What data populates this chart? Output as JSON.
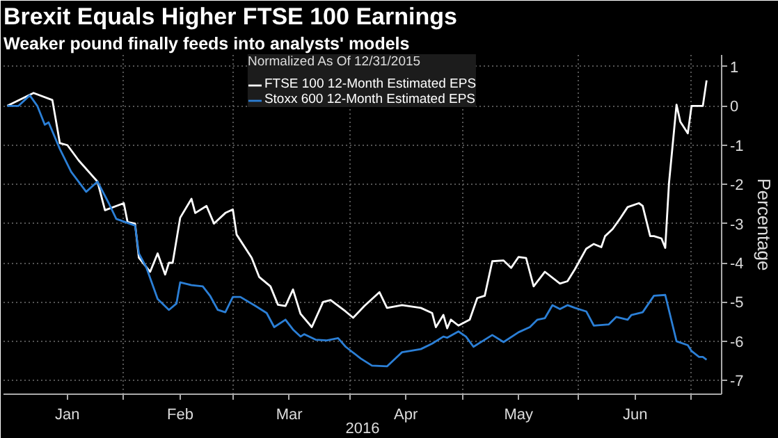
{
  "chart_data": {
    "type": "line",
    "title": "Brexit Equals Higher FTSE 100 Earnings",
    "subtitle": "Weaker pound finally feeds into analysts' models",
    "ylabel": "Percentage",
    "legend_title": "Normalized As Of 12/31/2015",
    "annotations": [
      "2016"
    ],
    "xlim": [
      "2015-12-31",
      "2016-07-09"
    ],
    "xticks": [
      {
        "value": "2016-01-17",
        "label": "Jan"
      },
      {
        "value": "2016-02-01",
        "label": null
      },
      {
        "value": "2016-02-16",
        "label": "Feb"
      },
      {
        "value": "2016-03-01",
        "label": null
      },
      {
        "value": "2016-03-16",
        "label": "Mar"
      },
      {
        "value": "2016-04-01",
        "label": null
      },
      {
        "value": "2016-04-16",
        "label": "Apr"
      },
      {
        "value": "2016-05-01",
        "label": null
      },
      {
        "value": "2016-05-16",
        "label": "May"
      },
      {
        "value": "2016-06-01",
        "label": null
      },
      {
        "value": "2016-06-16",
        "label": "Jun"
      },
      {
        "value": "2016-07-01",
        "label": null
      }
    ],
    "ylim": [
      -7.35,
      1.3
    ],
    "yticks": [
      -7,
      -6,
      -5,
      -4,
      -3,
      -2,
      -1,
      0,
      1
    ],
    "grid": true,
    "legend": "top",
    "series": [
      {
        "name": "FTSE 100 12-Month Estimated EPS",
        "color": "#ffffff",
        "x": [
          "2016-01-01",
          "2016-01-08",
          "2016-01-13",
          "2016-01-15",
          "2016-01-17",
          "2016-01-20",
          "2016-01-25",
          "2016-01-27",
          "2016-02-01",
          "2016-02-02",
          "2016-02-04",
          "2016-02-05",
          "2016-02-08",
          "2016-02-10",
          "2016-02-12",
          "2016-02-13",
          "2016-02-14",
          "2016-02-16",
          "2016-02-19",
          "2016-02-20",
          "2016-02-23",
          "2016-02-25",
          "2016-02-28",
          "2016-03-01",
          "2016-03-02",
          "2016-03-06",
          "2016-03-08",
          "2016-03-11",
          "2016-03-13",
          "2016-03-15",
          "2016-03-17",
          "2016-03-19",
          "2016-03-22",
          "2016-03-25",
          "2016-03-27",
          "2016-03-31",
          "2016-04-02",
          "2016-04-05",
          "2016-04-09",
          "2016-04-11",
          "2016-04-15",
          "2016-04-20",
          "2016-04-23",
          "2016-04-24",
          "2016-04-26",
          "2016-04-27",
          "2016-04-28",
          "2016-04-30",
          "2016-05-03",
          "2016-05-05",
          "2016-05-07",
          "2016-05-09",
          "2016-05-12",
          "2016-05-14",
          "2016-05-16",
          "2016-05-18",
          "2016-05-20",
          "2016-05-23",
          "2016-05-27",
          "2016-05-29",
          "2016-05-31",
          "2016-06-03",
          "2016-06-05",
          "2016-06-07",
          "2016-06-08",
          "2016-06-10",
          "2016-06-12",
          "2016-06-14",
          "2016-06-17",
          "2016-06-18",
          "2016-06-20",
          "2016-06-21",
          "2016-06-23",
          "2016-06-24",
          "2016-06-25",
          "2016-06-27",
          "2016-06-28",
          "2016-06-30",
          "2016-07-01",
          "2016-07-04",
          "2016-07-05"
        ],
        "values": [
          0,
          0.33,
          0.15,
          -0.95,
          -1.0,
          -1.39,
          -1.93,
          -2.66,
          -2.48,
          -2.96,
          -3.0,
          -3.87,
          -4.23,
          -3.76,
          -4.3,
          -4.0,
          -4.0,
          -2.85,
          -2.37,
          -2.73,
          -2.55,
          -3.0,
          -2.73,
          -2.64,
          -3.28,
          -3.87,
          -4.36,
          -4.6,
          -5.07,
          -5.1,
          -4.68,
          -5.3,
          -5.64,
          -5.0,
          -4.95,
          -5.24,
          -5.4,
          -5.1,
          -4.75,
          -5.15,
          -5.08,
          -5.15,
          -5.28,
          -5.64,
          -5.33,
          -5.67,
          -5.45,
          -5.6,
          -5.45,
          -4.9,
          -4.84,
          -3.96,
          -3.94,
          -4.13,
          -3.85,
          -3.88,
          -4.6,
          -4.23,
          -4.53,
          -4.47,
          -4.16,
          -3.64,
          -3.52,
          -3.6,
          -3.32,
          -3.14,
          -2.87,
          -2.58,
          -2.48,
          -2.55,
          -3.32,
          -3.32,
          -3.38,
          -3.62,
          -1.97,
          0.03,
          -0.4,
          -0.7,
          0,
          0,
          0.65
        ]
      },
      {
        "name": "Stoxx 600 12-Month Estimated EPS",
        "color": "#2b7fd6",
        "x": [
          "2016-01-01",
          "2016-01-04",
          "2016-01-07",
          "2016-01-09",
          "2016-01-11",
          "2016-01-12",
          "2016-01-15",
          "2016-01-18",
          "2016-01-22",
          "2016-01-25",
          "2016-01-28",
          "2016-01-30",
          "2016-02-04",
          "2016-02-05",
          "2016-02-07",
          "2016-02-10",
          "2016-02-13",
          "2016-02-15",
          "2016-02-16",
          "2016-02-19",
          "2016-02-22",
          "2016-02-24",
          "2016-02-26",
          "2016-02-28",
          "2016-03-01",
          "2016-03-03",
          "2016-03-07",
          "2016-03-10",
          "2016-03-12",
          "2016-03-15",
          "2016-03-17",
          "2016-03-19",
          "2016-03-20",
          "2016-03-23",
          "2016-03-26",
          "2016-03-29",
          "2016-03-31",
          "2016-04-04",
          "2016-04-07",
          "2016-04-11",
          "2016-04-15",
          "2016-04-17",
          "2016-04-20",
          "2016-04-23",
          "2016-04-26",
          "2016-04-27",
          "2016-04-30",
          "2016-05-02",
          "2016-05-04",
          "2016-05-07",
          "2016-05-09",
          "2016-05-12",
          "2016-05-16",
          "2016-05-19",
          "2016-05-21",
          "2016-05-23",
          "2016-05-25",
          "2016-05-27",
          "2016-05-29",
          "2016-05-31",
          "2016-06-03",
          "2016-06-05",
          "2016-06-09",
          "2016-06-11",
          "2016-06-14",
          "2016-06-15",
          "2016-06-18",
          "2016-06-21",
          "2016-06-24",
          "2016-06-27",
          "2016-06-30",
          "2016-07-01",
          "2016-07-03",
          "2016-07-04",
          "2016-07-05"
        ],
        "values": [
          0,
          0,
          0.27,
          0,
          -0.48,
          -0.42,
          -1.1,
          -1.68,
          -2.19,
          -1.93,
          -2.48,
          -2.88,
          -3.05,
          -3.76,
          -4.12,
          -4.92,
          -5.2,
          -5.04,
          -4.5,
          -4.57,
          -4.6,
          -4.85,
          -5.2,
          -5.26,
          -4.87,
          -4.87,
          -5.1,
          -5.28,
          -5.64,
          -5.45,
          -5.7,
          -5.88,
          -5.82,
          -5.96,
          -5.98,
          -5.92,
          -6.14,
          -6.44,
          -6.62,
          -6.64,
          -6.28,
          -6.25,
          -6.2,
          -6.06,
          -5.88,
          -5.91,
          -5.75,
          -5.88,
          -6.14,
          -5.96,
          -5.84,
          -6.02,
          -5.77,
          -5.64,
          -5.45,
          -5.41,
          -5.08,
          -5.18,
          -5.08,
          -5.15,
          -5.24,
          -5.6,
          -5.57,
          -5.38,
          -5.45,
          -5.33,
          -5.26,
          -4.84,
          -4.82,
          -6.0,
          -6.1,
          -6.25,
          -6.4,
          -6.4,
          -6.47
        ]
      }
    ]
  }
}
